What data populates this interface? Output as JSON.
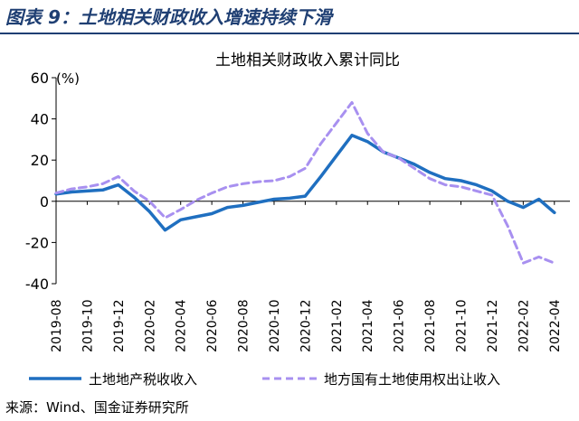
{
  "header": {
    "figure_title": "图表 9：土地相关财政收入增速持续下滑"
  },
  "footer": {
    "source": "来源：Wind、国金证券研究所"
  },
  "colors": {
    "series_0": "#1f6fc0",
    "series_1": "#a890f0",
    "rule": "#1f3f73"
  },
  "chart_data": {
    "type": "line",
    "title": "土地相关财政收入累计同比",
    "ylabel": "(%)",
    "ylim": [
      -40,
      60
    ],
    "yticks": [
      -40,
      -20,
      0,
      20,
      40,
      60
    ],
    "xlim": [
      "2019-08",
      "2022-05"
    ],
    "xticks": [
      "2019-08",
      "2019-10",
      "2019-12",
      "2020-02",
      "2020-04",
      "2020-06",
      "2020-08",
      "2020-10",
      "2020-12",
      "2021-02",
      "2021-04",
      "2021-06",
      "2021-08",
      "2021-10",
      "2021-12",
      "2022-02",
      "2022-04"
    ],
    "grid": false,
    "legend": "bottom",
    "series": [
      {
        "name": "土地地产税收收入",
        "style": "solid",
        "points": [
          [
            "2019-08",
            3.5
          ],
          [
            "2019-09",
            4.5
          ],
          [
            "2019-10",
            5
          ],
          [
            "2019-11",
            5.5
          ],
          [
            "2019-12",
            8
          ],
          [
            "2020-01",
            2
          ],
          [
            "2020-02",
            -5
          ],
          [
            "2020-03",
            -14
          ],
          [
            "2020-04",
            -9
          ],
          [
            "2020-05",
            -7.5
          ],
          [
            "2020-06",
            -6
          ],
          [
            "2020-07",
            -3
          ],
          [
            "2020-08",
            -2
          ],
          [
            "2020-09",
            -0.5
          ],
          [
            "2020-10",
            1
          ],
          [
            "2020-11",
            1.5
          ],
          [
            "2020-12",
            2.5
          ],
          [
            "2021-01",
            12
          ],
          [
            "2021-02",
            22
          ],
          [
            "2021-03",
            32
          ],
          [
            "2021-04",
            29
          ],
          [
            "2021-05",
            24
          ],
          [
            "2021-06",
            21
          ],
          [
            "2021-07",
            18
          ],
          [
            "2021-08",
            14
          ],
          [
            "2021-09",
            11
          ],
          [
            "2021-10",
            10
          ],
          [
            "2021-11",
            8
          ],
          [
            "2021-12",
            5
          ],
          [
            "2022-01",
            0
          ],
          [
            "2022-02",
            -3
          ],
          [
            "2022-03",
            1
          ],
          [
            "2022-04",
            -5.5
          ]
        ]
      },
      {
        "name": "地方国有土地使用权出让收入",
        "style": "dashed",
        "points": [
          [
            "2019-08",
            4
          ],
          [
            "2019-09",
            6
          ],
          [
            "2019-10",
            7
          ],
          [
            "2019-11",
            8.5
          ],
          [
            "2019-12",
            12
          ],
          [
            "2020-01",
            5
          ],
          [
            "2020-02",
            0
          ],
          [
            "2020-03",
            -8
          ],
          [
            "2020-04",
            -4
          ],
          [
            "2020-05",
            0.5
          ],
          [
            "2020-06",
            4
          ],
          [
            "2020-07",
            7
          ],
          [
            "2020-08",
            8.5
          ],
          [
            "2020-09",
            9.5
          ],
          [
            "2020-10",
            10
          ],
          [
            "2020-11",
            12
          ],
          [
            "2020-12",
            16
          ],
          [
            "2021-01",
            28
          ],
          [
            "2021-02",
            38
          ],
          [
            "2021-03",
            48
          ],
          [
            "2021-04",
            33
          ],
          [
            "2021-05",
            24
          ],
          [
            "2021-06",
            21
          ],
          [
            "2021-07",
            16
          ],
          [
            "2021-08",
            11
          ],
          [
            "2021-09",
            8
          ],
          [
            "2021-10",
            7
          ],
          [
            "2021-11",
            5
          ],
          [
            "2021-12",
            3
          ],
          [
            "2022-01",
            -12
          ],
          [
            "2022-02",
            -30
          ],
          [
            "2022-03",
            -27
          ],
          [
            "2022-04",
            -30
          ]
        ]
      }
    ]
  }
}
